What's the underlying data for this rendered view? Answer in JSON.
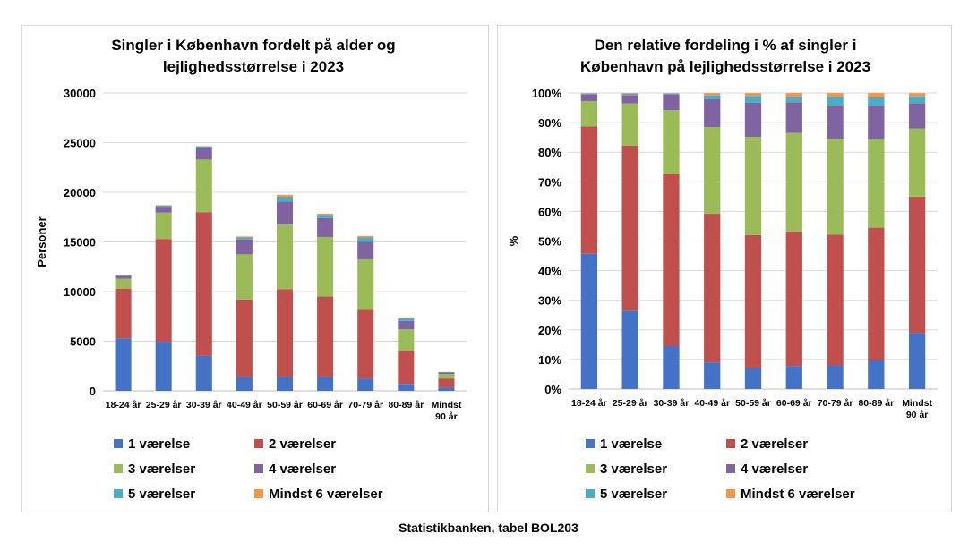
{
  "source_note": "Statistikbanken, tabel BOL203",
  "colors": {
    "1 værelse": "#4472c4",
    "2 værelser": "#c0504d",
    "3 værelser": "#9bbb59",
    "4 værelser": "#8064a2",
    "5 værelser": "#4bacc6",
    "Mindst 6 værelser": "#f79646"
  },
  "chart_data": [
    {
      "type": "bar",
      "stacked": true,
      "title": "Singler i København fordelt på alder og lejlighedsstørrelse i 2023",
      "title_lines": [
        "Singler i København fordelt på alder og",
        "lejlighedsstørrelse i 2023"
      ],
      "ylabel": "Personer",
      "ylim": [
        0,
        30000
      ],
      "yticks": [
        "0",
        "5000",
        "10000",
        "15000",
        "20000",
        "25000",
        "30000"
      ],
      "grid": true,
      "legend_position": "bottom",
      "categories": [
        "18-24 år",
        "25-29 år",
        "30-39 år",
        "40-49 år",
        "50-59 år",
        "60-69 år",
        "70-79 år",
        "80-89 år",
        "Mindst 90 år"
      ],
      "category_lines": [
        [
          "18-24 år"
        ],
        [
          "25-29 år"
        ],
        [
          "30-39 år"
        ],
        [
          "40-49 år"
        ],
        [
          "50-59 år"
        ],
        [
          "60-69 år"
        ],
        [
          "70-79 år"
        ],
        [
          "80-89 år"
        ],
        [
          "Mindst",
          "90 år"
        ]
      ],
      "series": [
        {
          "name": "1 værelse",
          "values": [
            5300,
            4950,
            3550,
            1400,
            1400,
            1400,
            1250,
            700,
            350
          ]
        },
        {
          "name": "2 værelser",
          "values": [
            5000,
            10350,
            14450,
            7800,
            8850,
            8100,
            6900,
            3300,
            900
          ]
        },
        {
          "name": "3 værelser",
          "values": [
            1000,
            2650,
            5300,
            4550,
            6500,
            6000,
            5100,
            2200,
            450
          ]
        },
        {
          "name": "4 værelser",
          "values": [
            300,
            600,
            1150,
            1500,
            2300,
            1900,
            1750,
            850,
            150
          ]
        },
        {
          "name": "5 værelser",
          "values": [
            50,
            100,
            150,
            200,
            500,
            300,
            450,
            250,
            40
          ]
        },
        {
          "name": "Mindst 6 værelser",
          "values": [
            50,
            50,
            50,
            100,
            200,
            150,
            150,
            100,
            10
          ]
        }
      ]
    },
    {
      "type": "bar",
      "stacked": true,
      "percent": true,
      "title": "Den relative fordeling i % af singler i København på lejlighedsstørrelse i 2023",
      "title_lines": [
        "Den relative fordeling i % af singler i",
        "København på lejlighedsstørrelse i 2023"
      ],
      "ylabel": "%",
      "ylim": [
        0,
        100
      ],
      "yticks": [
        "0%",
        "10%",
        "20%",
        "30%",
        "40%",
        "50%",
        "60%",
        "70%",
        "80%",
        "90%",
        "100%"
      ],
      "grid": true,
      "legend_position": "bottom",
      "categories": [
        "18-24 år",
        "25-29 år",
        "30-39 år",
        "40-49 år",
        "50-59 år",
        "60-69 år",
        "70-79 år",
        "80-89 år",
        "Mindst 90 år"
      ],
      "category_lines": [
        [
          "18-24 år"
        ],
        [
          "25-29 år"
        ],
        [
          "30-39 år"
        ],
        [
          "40-49 år"
        ],
        [
          "50-59 år"
        ],
        [
          "60-69 år"
        ],
        [
          "70-79 år"
        ],
        [
          "80-89 år"
        ],
        [
          "Mindst",
          "90 år"
        ]
      ],
      "series": [
        {
          "name": "1 værelse",
          "values": [
            45.7,
            26.5,
            14.5,
            9.0,
            7.0,
            7.8,
            8.0,
            9.7,
            19.0
          ]
        },
        {
          "name": "2 værelser",
          "values": [
            43.0,
            55.7,
            58.1,
            50.2,
            45.0,
            45.4,
            44.2,
            44.8,
            46.0
          ]
        },
        {
          "name": "3 værelser",
          "values": [
            8.6,
            14.3,
            21.6,
            29.3,
            33.2,
            33.3,
            32.4,
            30.0,
            23.0
          ]
        },
        {
          "name": "4 værelser",
          "values": [
            2.2,
            2.7,
            5.2,
            9.4,
            11.5,
            10.4,
            11.1,
            11.2,
            8.5
          ]
        },
        {
          "name": "5 værelser",
          "values": [
            0.3,
            0.5,
            0.4,
            1.3,
            2.3,
            1.8,
            3.0,
            2.8,
            2.4
          ]
        },
        {
          "name": "Mindst 6 værelser",
          "values": [
            0.2,
            0.3,
            0.2,
            0.8,
            1.0,
            1.3,
            1.3,
            1.5,
            1.1
          ]
        }
      ]
    }
  ]
}
